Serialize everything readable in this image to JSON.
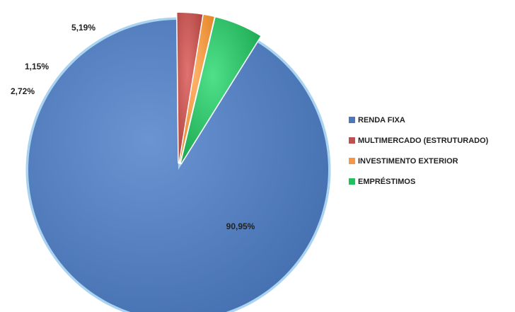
{
  "chart_data": {
    "type": "pie",
    "title": "",
    "slices": [
      {
        "label": "RENDA FIXA",
        "value": 90.95,
        "value_label": "90,95%",
        "color": "#4a78bc"
      },
      {
        "label": "MULTIMERCADO (ESTRUTURADO)",
        "value": 2.72,
        "value_label": "2,72%",
        "color": "#c0504d"
      },
      {
        "label": "INVESTIMENTO EXTERIOR",
        "value": 1.15,
        "value_label": "1,15%",
        "color": "#f79646"
      },
      {
        "label": "EMPRÉSTIMOS",
        "value": 5.19,
        "value_label": "5,19%",
        "color": "#1ec25a"
      }
    ],
    "legend_position": "right",
    "style": "3d-beveled"
  }
}
